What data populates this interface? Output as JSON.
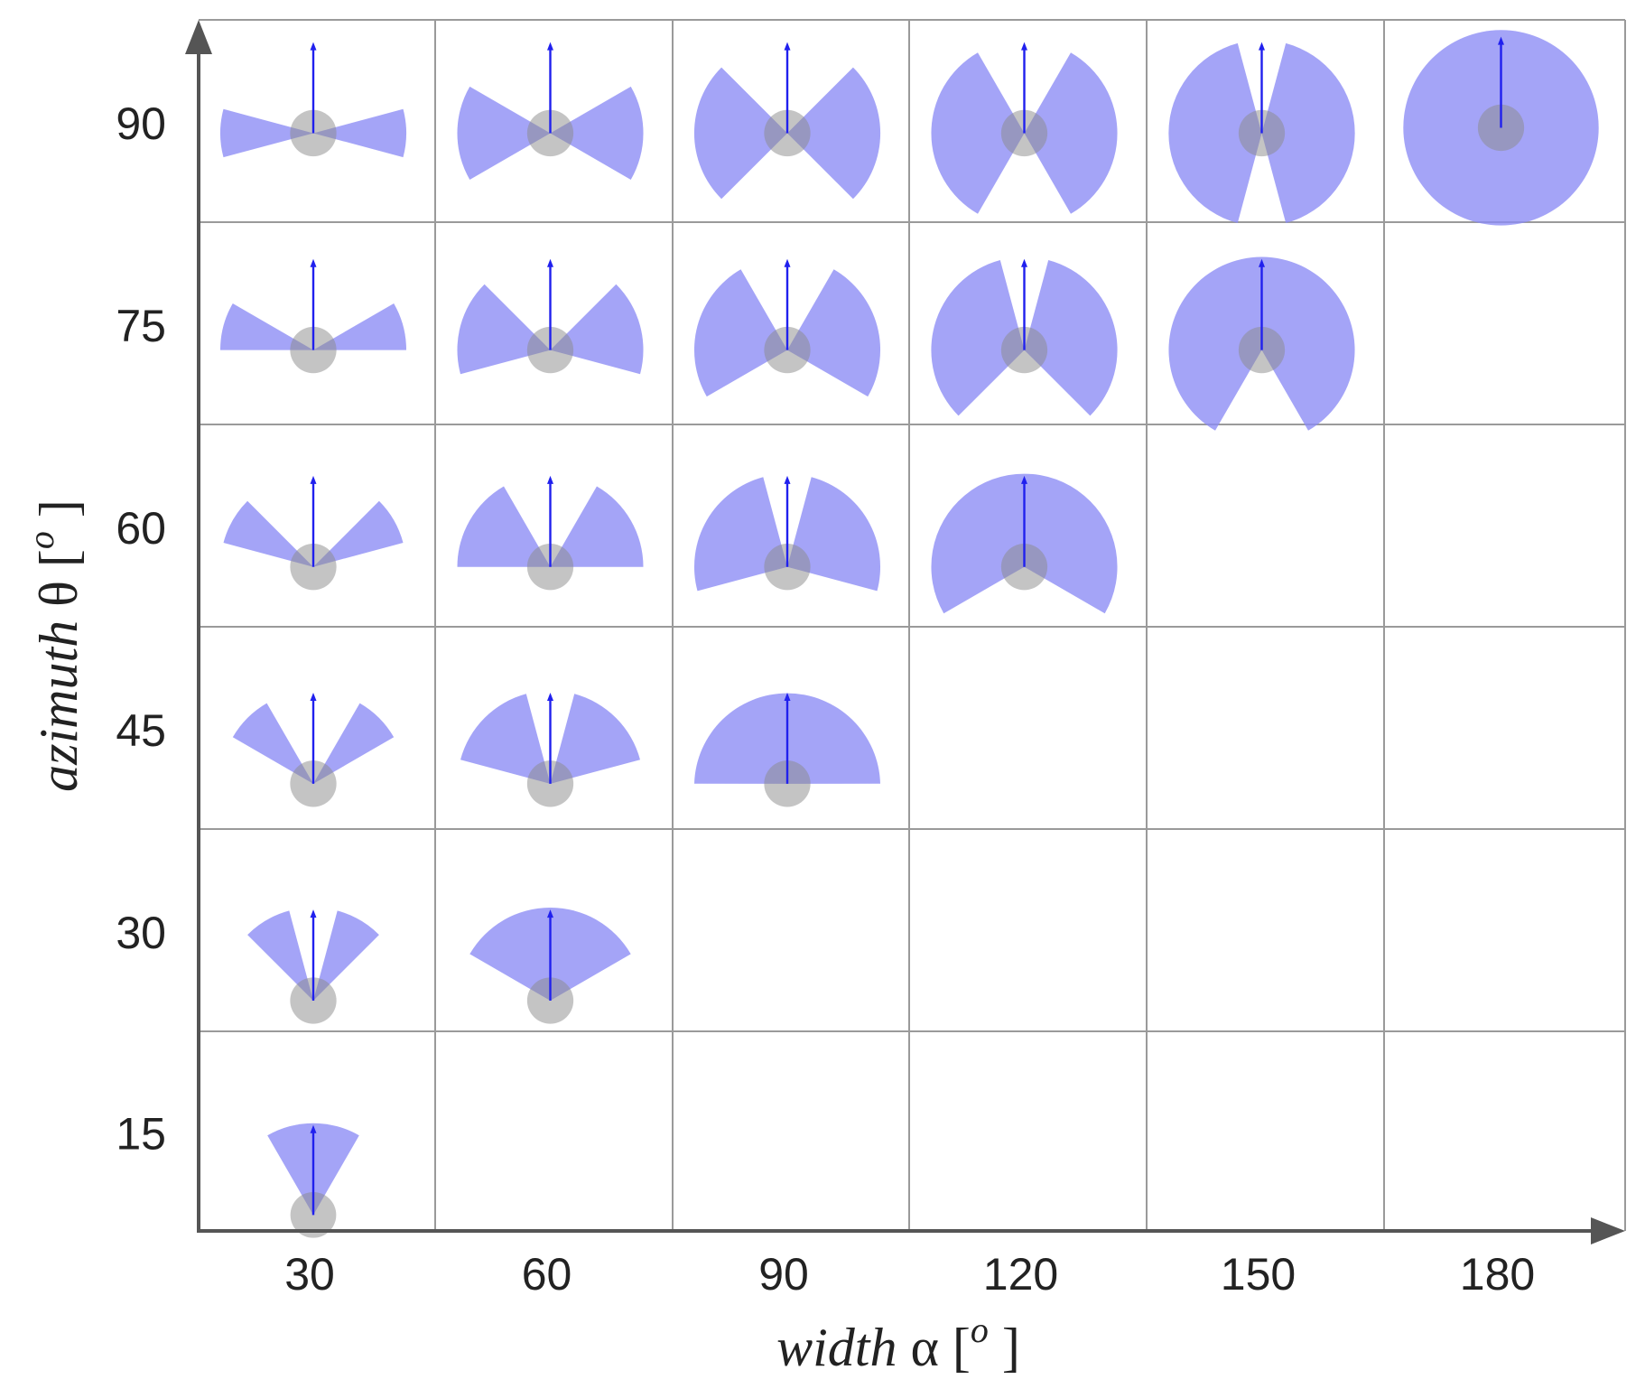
{
  "colors": {
    "background": "#ffffff",
    "grid": "#9a9a9a",
    "axis": "#555555",
    "sector": "#8a8af5",
    "arrow": "#2020ee",
    "base": "#8a8a8a"
  },
  "x_axis": {
    "title_symbol": "width",
    "title_rest": " α [",
    "title_sup": "o",
    "title_close": " ]",
    "ticks": [
      "30",
      "60",
      "90",
      "120",
      "150",
      "180"
    ],
    "values": [
      30,
      60,
      90,
      120,
      150,
      180
    ]
  },
  "y_axis": {
    "title_symbol": "azimuth",
    "title_rest": " θ [",
    "title_sup": "o",
    "title_close": " ]",
    "ticks": [
      "90",
      "75",
      "60",
      "45",
      "30",
      "15"
    ],
    "values": [
      90,
      75,
      60,
      45,
      30,
      15
    ]
  },
  "cells": [
    {
      "width_deg": 30,
      "azimuth_deg": 90
    },
    {
      "width_deg": 60,
      "azimuth_deg": 90
    },
    {
      "width_deg": 90,
      "azimuth_deg": 90
    },
    {
      "width_deg": 120,
      "azimuth_deg": 90
    },
    {
      "width_deg": 150,
      "azimuth_deg": 90
    },
    {
      "width_deg": 180,
      "azimuth_deg": 90
    },
    {
      "width_deg": 30,
      "azimuth_deg": 75
    },
    {
      "width_deg": 60,
      "azimuth_deg": 75
    },
    {
      "width_deg": 90,
      "azimuth_deg": 75
    },
    {
      "width_deg": 120,
      "azimuth_deg": 75
    },
    {
      "width_deg": 150,
      "azimuth_deg": 75
    },
    {
      "width_deg": 30,
      "azimuth_deg": 60
    },
    {
      "width_deg": 60,
      "azimuth_deg": 60
    },
    {
      "width_deg": 90,
      "azimuth_deg": 60
    },
    {
      "width_deg": 120,
      "azimuth_deg": 60
    },
    {
      "width_deg": 30,
      "azimuth_deg": 45
    },
    {
      "width_deg": 60,
      "azimuth_deg": 45
    },
    {
      "width_deg": 90,
      "azimuth_deg": 45
    },
    {
      "width_deg": 30,
      "azimuth_deg": 30
    },
    {
      "width_deg": 60,
      "azimuth_deg": 30
    },
    {
      "width_deg": 30,
      "azimuth_deg": 15
    }
  ]
}
